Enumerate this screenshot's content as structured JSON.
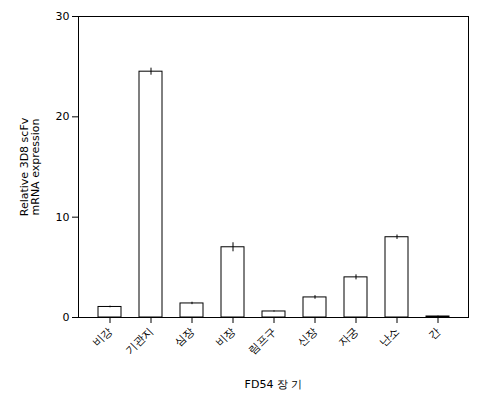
{
  "chart_data": {
    "type": "bar",
    "categories": [
      "비강",
      "기관지",
      "심장",
      "비장",
      "림프구",
      "신장",
      "자궁",
      "난소",
      "간"
    ],
    "values": [
      1.05,
      24.5,
      1.4,
      7.0,
      0.6,
      2.0,
      4.0,
      8.0,
      0.1
    ],
    "errors": [
      0.08,
      0.35,
      0.12,
      0.45,
      0.06,
      0.18,
      0.25,
      0.22,
      0.04
    ],
    "color": "white",
    "xlabel": "FD54 장 기",
    "ylabel": "Relative 3D8 scFv\nmRNA expression",
    "ylim": [
      0,
      30
    ],
    "yticks": [
      0,
      10,
      20,
      30
    ],
    "grid": false
  }
}
